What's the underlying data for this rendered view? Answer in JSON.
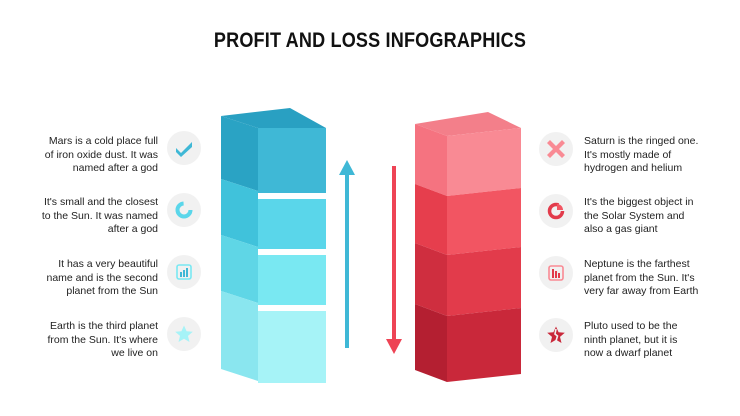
{
  "title": "PROFIT AND LOSS INFOGRAPHICS",
  "left_items": [
    {
      "lines": [
        "Mars is a cold place full",
        "of iron oxide dust. It was",
        "named after a god"
      ],
      "icon": "check-icon"
    },
    {
      "lines": [
        "It's small and the closest",
        "to the Sun. It was named",
        "after a god"
      ],
      "icon": "donut-chart-icon"
    },
    {
      "lines": [
        "It has a very beautiful",
        "name and is the second",
        "planet from the Sun"
      ],
      "icon": "bar-chart-up-icon"
    },
    {
      "lines": [
        "Earth is the third planet",
        "from the Sun. It's where",
        "we live on"
      ],
      "icon": "star-icon"
    }
  ],
  "right_items": [
    {
      "lines": [
        "Saturn is the ringed one.",
        "It's mostly made of",
        "hydrogen and helium"
      ],
      "icon": "cross-icon"
    },
    {
      "lines": [
        "It's the biggest object in",
        "the Solar System and",
        "also a gas giant"
      ],
      "icon": "pie-chart-icon"
    },
    {
      "lines": [
        "Neptune is the farthest",
        "planet from the Sun. It's",
        "very far away from Earth"
      ],
      "icon": "bar-chart-down-icon"
    },
    {
      "lines": [
        "Pluto used to be the",
        "ninth planet, but it is",
        "now a dwarf planet"
      ],
      "icon": "broken-star-icon"
    }
  ],
  "colors": {
    "profit_front": [
      "#3fb8d6",
      "#5ad6ea",
      "#79e8f2",
      "#a6f3f7"
    ],
    "profit_side": [
      "#2aa3c4",
      "#40c2db",
      "#5fd6e6",
      "#8ae6ef"
    ],
    "profit_top": "#29a0c2",
    "loss_front": [
      "#f98a94",
      "#f25562",
      "#e23b4b",
      "#c9283a"
    ],
    "loss_side": [
      "#f57380",
      "#e63e4d",
      "#cf2e3f",
      "#b41f31"
    ],
    "loss_top": "#f37f8a",
    "up_arrow": "#3fb8d6",
    "down_arrow": "#ee4455",
    "badge_bg": "#f1f1f1"
  }
}
